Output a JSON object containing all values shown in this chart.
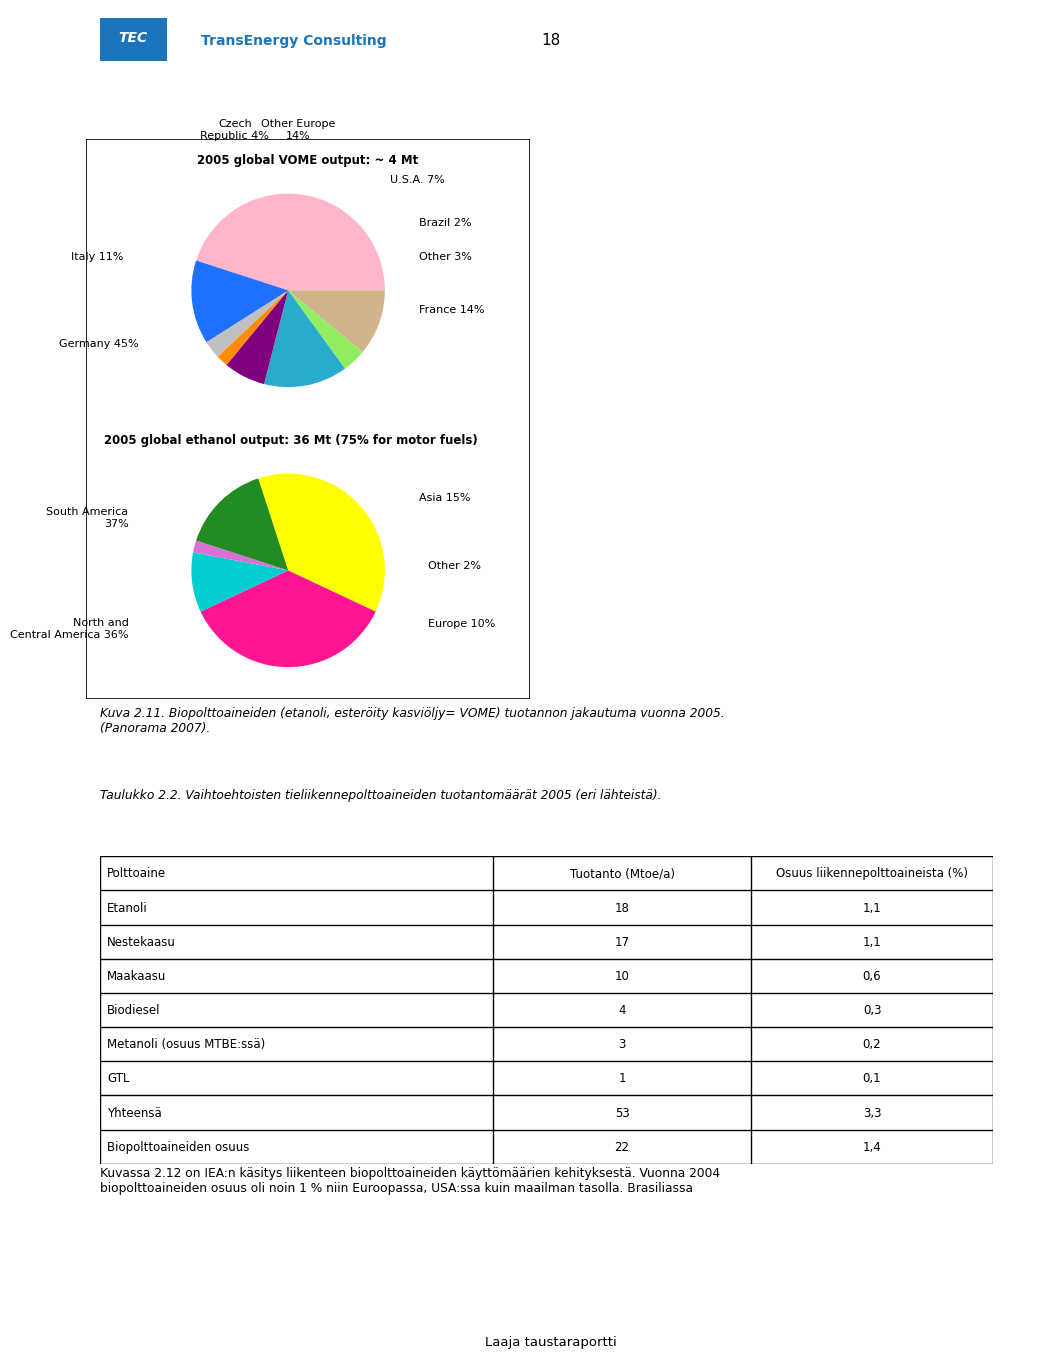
{
  "page_number": "18",
  "vome_title": "2005 global VOME output: ~ 4 Mt",
  "vome_slices": [
    45,
    11,
    4,
    14,
    7,
    2,
    3,
    14
  ],
  "vome_labels": [
    "Germany 45%",
    "Italy 11%",
    "Czech\nRepublic 4%",
    "Other Europe\n14%",
    "U.S.A. 7%",
    "Brazil 2%",
    "Other 3%",
    "France 14%"
  ],
  "vome_colors": [
    "#FFB6C8",
    "#D2B48C",
    "#90EE60",
    "#29ABCE",
    "#800080",
    "#FF8C00",
    "#C0C0C0",
    "#1E70FF"
  ],
  "ethanol_title": "2005 global ethanol output: 36 Mt (75% for motor fuels)",
  "ethanol_slices": [
    37,
    36,
    10,
    2,
    15
  ],
  "ethanol_labels": [
    "South America\n37%",
    "North and\nCentral America 36%",
    "Europe 10%",
    "Other 2%",
    "Asia 15%"
  ],
  "ethanol_colors": [
    "#FFFF00",
    "#FF1493",
    "#00CED1",
    "#DA70D6",
    "#228B22"
  ],
  "caption": "Kuva 2.11. Biopolttoaineiden (etanoli, esteröity kasviöljy= VOME) tuotannon jakautuma vuonna 2005.\n(Panorama 2007).",
  "table_title": "Taulukko 2.2. Vaihtoehtoisten tieliikennepolttoaineiden tuotantomäärät 2005 (eri lähteistä).",
  "table_headers": [
    "Polttoaine",
    "Tuotanto (Mtoe/a)",
    "Osuus liikennepolttoaineista (%)"
  ],
  "table_rows": [
    [
      "Etanoli",
      "18",
      "1,1"
    ],
    [
      "Nestekaasu",
      "17",
      "1,1"
    ],
    [
      "Maakaasu",
      "10",
      "0,6"
    ],
    [
      "Biodiesel",
      "4",
      "0,3"
    ],
    [
      "Metanoli (osuus MTBE:ssä)",
      "3",
      "0,2"
    ],
    [
      "GTL",
      "1",
      "0,1"
    ],
    [
      "Yhteensä",
      "53",
      "3,3"
    ],
    [
      "Biopolttoaineiden osuus",
      "22",
      "1,4"
    ]
  ],
  "bottom_text": "Kuvassa 2.12 on IEA:n käsitys liikenteen biopolttoaineiden käyttömäärien kehityksestä. Vuonna 2004\nbiopolttoaineiden osuus oli noin 1 % niin Euroopassa, USA:ssa kuin maailman tasolla. Brasiliassa",
  "footer_text": "Laaja taustaraportti"
}
